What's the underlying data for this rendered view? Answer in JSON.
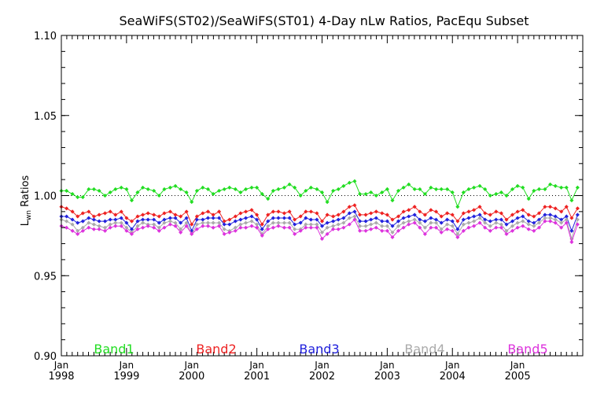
{
  "chart_data": {
    "type": "line",
    "title": "SeaWiFS(ST02)/SeaWiFS(ST01) 4-Day nLw Ratios, PacEqu Subset",
    "ylabel_main": "L",
    "ylabel_sub": "wn",
    "ylabel_rest": " Ratios",
    "ylim": [
      0.9,
      1.1
    ],
    "yticks": [
      0.9,
      0.95,
      1.0,
      1.05,
      1.1
    ],
    "ytick_labels": [
      "0.90",
      "0.95",
      "1.00",
      "1.05",
      "1.10"
    ],
    "xlim": [
      1998.0,
      2006.0
    ],
    "xticks": [
      {
        "x": 1998.0,
        "month": "Jan",
        "year": "1998"
      },
      {
        "x": 1999.0,
        "month": "Jan",
        "year": "1999"
      },
      {
        "x": 2000.0,
        "month": "Jan",
        "year": "2000"
      },
      {
        "x": 2001.0,
        "month": "Jan",
        "year": "2001"
      },
      {
        "x": 2002.0,
        "month": "Jan",
        "year": "2002"
      },
      {
        "x": 2003.0,
        "month": "Jan",
        "year": "2003"
      },
      {
        "x": 2004.0,
        "month": "Jan",
        "year": "2004"
      },
      {
        "x": 2005.0,
        "month": "Jan",
        "year": "2005"
      }
    ],
    "reference_line": 1.0,
    "x": [
      1998.0,
      1998.08,
      1998.17,
      1998.25,
      1998.33,
      1998.42,
      1998.5,
      1998.58,
      1998.67,
      1998.75,
      1998.83,
      1998.92,
      1999.0,
      1999.08,
      1999.17,
      1999.25,
      1999.33,
      1999.42,
      1999.5,
      1999.58,
      1999.67,
      1999.75,
      1999.83,
      1999.92,
      2000.0,
      2000.08,
      2000.17,
      2000.25,
      2000.33,
      2000.42,
      2000.5,
      2000.58,
      2000.67,
      2000.75,
      2000.83,
      2000.92,
      2001.0,
      2001.08,
      2001.17,
      2001.25,
      2001.33,
      2001.42,
      2001.5,
      2001.58,
      2001.67,
      2001.75,
      2001.83,
      2001.92,
      2002.0,
      2002.08,
      2002.17,
      2002.25,
      2002.33,
      2002.42,
      2002.5,
      2002.58,
      2002.67,
      2002.75,
      2002.83,
      2002.92,
      2003.0,
      2003.08,
      2003.17,
      2003.25,
      2003.33,
      2003.42,
      2003.5,
      2003.58,
      2003.67,
      2003.75,
      2003.83,
      2003.92,
      2004.0,
      2004.08,
      2004.17,
      2004.25,
      2004.33,
      2004.42,
      2004.5,
      2004.58,
      2004.67,
      2004.75,
      2004.83,
      2004.92,
      2005.0,
      2005.08,
      2005.17,
      2005.25,
      2005.33,
      2005.42,
      2005.5,
      2005.58,
      2005.67,
      2005.75,
      2005.83,
      2005.92
    ],
    "series": [
      {
        "name": "Band1",
        "color": "#22dd22",
        "values": [
          1.003,
          1.003,
          1.001,
          0.999,
          0.999,
          1.004,
          1.004,
          1.003,
          1.0,
          1.002,
          1.004,
          1.005,
          1.004,
          0.997,
          1.002,
          1.005,
          1.004,
          1.003,
          1.0,
          1.004,
          1.005,
          1.006,
          1.004,
          1.002,
          0.996,
          1.003,
          1.005,
          1.004,
          1.001,
          1.003,
          1.004,
          1.005,
          1.004,
          1.002,
          1.004,
          1.005,
          1.005,
          1.001,
          0.998,
          1.003,
          1.004,
          1.005,
          1.007,
          1.005,
          1.0,
          1.003,
          1.005,
          1.004,
          1.002,
          0.996,
          1.003,
          1.004,
          1.006,
          1.008,
          1.009,
          1.001,
          1.001,
          1.002,
          1.0,
          1.002,
          1.004,
          0.997,
          1.003,
          1.005,
          1.007,
          1.004,
          1.004,
          1.001,
          1.005,
          1.004,
          1.004,
          1.004,
          1.002,
          0.993,
          1.002,
          1.004,
          1.005,
          1.006,
          1.004,
          1.0,
          1.001,
          1.002,
          1.0,
          1.004,
          1.006,
          1.005,
          0.998,
          1.003,
          1.004,
          1.004,
          1.007,
          1.006,
          1.005,
          1.005,
          0.997,
          1.005
        ]
      },
      {
        "name": "Band2",
        "color": "#ee2222",
        "values": [
          0.993,
          0.992,
          0.99,
          0.987,
          0.989,
          0.99,
          0.987,
          0.988,
          0.989,
          0.99,
          0.988,
          0.99,
          0.986,
          0.984,
          0.987,
          0.988,
          0.989,
          0.988,
          0.987,
          0.989,
          0.99,
          0.988,
          0.987,
          0.99,
          0.982,
          0.987,
          0.989,
          0.99,
          0.988,
          0.99,
          0.984,
          0.985,
          0.987,
          0.989,
          0.99,
          0.991,
          0.988,
          0.982,
          0.988,
          0.99,
          0.99,
          0.989,
          0.99,
          0.985,
          0.987,
          0.99,
          0.99,
          0.989,
          0.984,
          0.988,
          0.987,
          0.988,
          0.99,
          0.993,
          0.994,
          0.988,
          0.988,
          0.989,
          0.99,
          0.989,
          0.988,
          0.985,
          0.987,
          0.99,
          0.991,
          0.993,
          0.99,
          0.988,
          0.991,
          0.99,
          0.987,
          0.989,
          0.988,
          0.984,
          0.989,
          0.99,
          0.991,
          0.993,
          0.989,
          0.988,
          0.99,
          0.989,
          0.985,
          0.988,
          0.99,
          0.991,
          0.988,
          0.987,
          0.989,
          0.993,
          0.993,
          0.992,
          0.99,
          0.993,
          0.986,
          0.992
        ]
      },
      {
        "name": "Band3",
        "color": "#2222dd",
        "values": [
          0.987,
          0.987,
          0.985,
          0.983,
          0.984,
          0.986,
          0.985,
          0.984,
          0.984,
          0.985,
          0.985,
          0.986,
          0.983,
          0.979,
          0.984,
          0.985,
          0.985,
          0.985,
          0.983,
          0.985,
          0.986,
          0.986,
          0.983,
          0.986,
          0.978,
          0.985,
          0.985,
          0.986,
          0.986,
          0.986,
          0.982,
          0.982,
          0.984,
          0.985,
          0.986,
          0.987,
          0.985,
          0.979,
          0.984,
          0.986,
          0.986,
          0.986,
          0.986,
          0.982,
          0.983,
          0.986,
          0.985,
          0.985,
          0.981,
          0.983,
          0.984,
          0.985,
          0.986,
          0.989,
          0.99,
          0.984,
          0.984,
          0.985,
          0.986,
          0.984,
          0.984,
          0.981,
          0.984,
          0.986,
          0.987,
          0.988,
          0.985,
          0.984,
          0.986,
          0.985,
          0.983,
          0.985,
          0.984,
          0.979,
          0.985,
          0.986,
          0.987,
          0.988,
          0.985,
          0.984,
          0.985,
          0.985,
          0.982,
          0.984,
          0.986,
          0.987,
          0.984,
          0.983,
          0.985,
          0.988,
          0.988,
          0.987,
          0.985,
          0.987,
          0.978,
          0.988
        ]
      },
      {
        "name": "Band4",
        "color": "#aaaaaa",
        "values": [
          0.985,
          0.984,
          0.982,
          0.978,
          0.98,
          0.983,
          0.982,
          0.981,
          0.98,
          0.982,
          0.983,
          0.983,
          0.98,
          0.977,
          0.981,
          0.983,
          0.982,
          0.982,
          0.98,
          0.983,
          0.984,
          0.983,
          0.979,
          0.983,
          0.976,
          0.982,
          0.983,
          0.983,
          0.983,
          0.983,
          0.979,
          0.978,
          0.98,
          0.982,
          0.983,
          0.984,
          0.982,
          0.976,
          0.981,
          0.983,
          0.983,
          0.983,
          0.983,
          0.979,
          0.979,
          0.982,
          0.982,
          0.982,
          0.977,
          0.98,
          0.981,
          0.982,
          0.983,
          0.986,
          0.987,
          0.981,
          0.981,
          0.982,
          0.983,
          0.981,
          0.981,
          0.977,
          0.981,
          0.983,
          0.984,
          0.985,
          0.983,
          0.98,
          0.983,
          0.983,
          0.979,
          0.982,
          0.981,
          0.976,
          0.982,
          0.983,
          0.984,
          0.986,
          0.983,
          0.981,
          0.983,
          0.982,
          0.978,
          0.981,
          0.983,
          0.984,
          0.982,
          0.981,
          0.983,
          0.986,
          0.986,
          0.985,
          0.983,
          0.985,
          0.973,
          0.985
        ]
      },
      {
        "name": "Band5",
        "color": "#dd33dd",
        "values": [
          0.981,
          0.98,
          0.978,
          0.976,
          0.978,
          0.98,
          0.979,
          0.979,
          0.978,
          0.98,
          0.981,
          0.981,
          0.978,
          0.976,
          0.979,
          0.98,
          0.981,
          0.98,
          0.978,
          0.98,
          0.982,
          0.981,
          0.977,
          0.981,
          0.976,
          0.979,
          0.981,
          0.981,
          0.98,
          0.981,
          0.976,
          0.977,
          0.978,
          0.98,
          0.98,
          0.981,
          0.98,
          0.975,
          0.979,
          0.98,
          0.981,
          0.98,
          0.98,
          0.976,
          0.978,
          0.98,
          0.98,
          0.98,
          0.973,
          0.976,
          0.979,
          0.979,
          0.98,
          0.982,
          0.985,
          0.978,
          0.978,
          0.979,
          0.98,
          0.978,
          0.978,
          0.974,
          0.978,
          0.98,
          0.982,
          0.983,
          0.98,
          0.976,
          0.98,
          0.98,
          0.977,
          0.979,
          0.978,
          0.974,
          0.978,
          0.98,
          0.981,
          0.983,
          0.98,
          0.978,
          0.98,
          0.98,
          0.976,
          0.978,
          0.98,
          0.981,
          0.979,
          0.978,
          0.98,
          0.984,
          0.984,
          0.983,
          0.98,
          0.983,
          0.971,
          0.982
        ]
      }
    ],
    "legend_placement": "bottom inside plot, horizontal",
    "grid": false
  }
}
